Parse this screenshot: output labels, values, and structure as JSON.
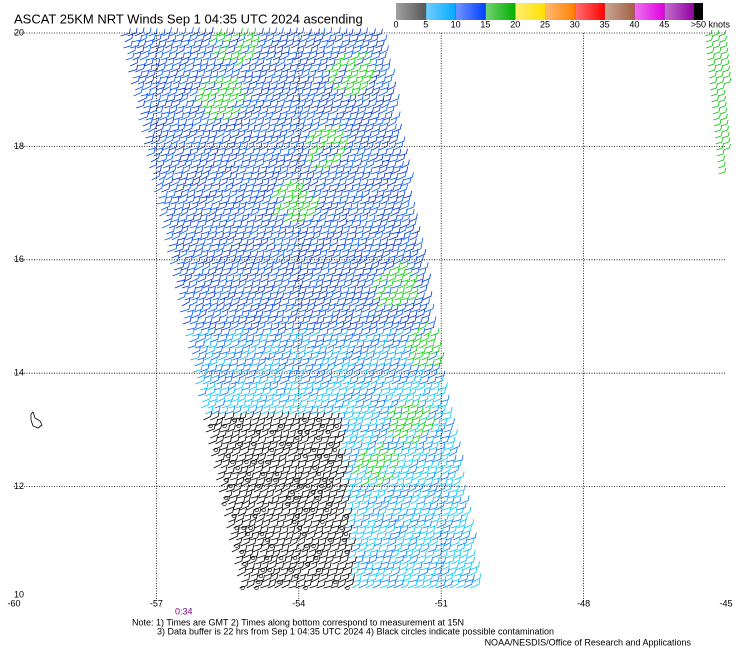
{
  "chart_data": {
    "type": "wind-map",
    "title": "ASCAT 25KM NRT Winds Sep  1 04:35 UTC 2024 ascending",
    "colorbar": {
      "ticks": [
        0,
        5,
        10,
        15,
        20,
        25,
        30,
        35,
        40,
        45
      ],
      "colors": [
        "#555555",
        "#00a8ff",
        "#0040ff",
        "#00b000",
        "#ffe000",
        "#ff8000",
        "#ff0000",
        "#a06040",
        "#e000e0",
        "#9000a0"
      ],
      "over_color": "#000000",
      "over_label": ">50 knots"
    },
    "xlim": [
      -60,
      -45
    ],
    "ylim": [
      10,
      20
    ],
    "xticks": [
      -60,
      -57,
      -54,
      -51,
      -48,
      -45
    ],
    "yticks": [
      10,
      12,
      14,
      16,
      18,
      20
    ],
    "grid": true,
    "time_label": "0:34",
    "notes": [
      "Note: 1) Times are GMT 2) Times along bottom correspond to measurement at 15N",
      "3) Data buffer is 22 hrs from Sep  1 04:35 UTC 2024 4) Black circles indicate possible contamination"
    ],
    "credit": "NOAA/NESDIS/Office of Research and Applications"
  }
}
